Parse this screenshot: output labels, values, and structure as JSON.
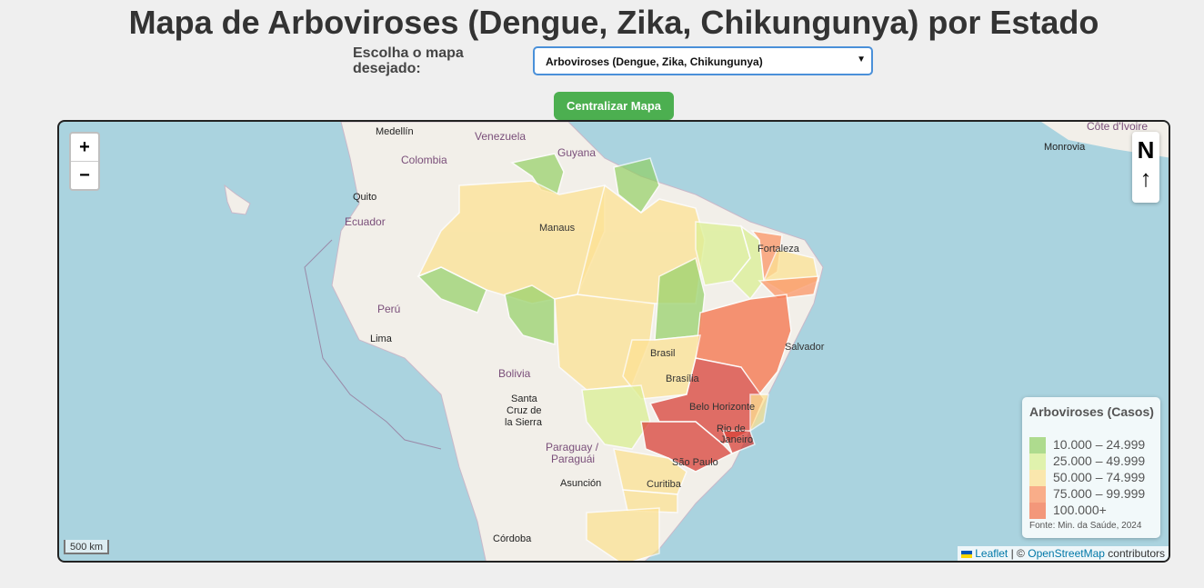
{
  "header": {
    "title": "Mapa de Arboviroses (Dengue, Zika, Chikungunya) por Estado"
  },
  "selector": {
    "label": "Escolha o mapa desejado:",
    "selected": "Arboviroses (Dengue, Zika, Chikungunya)"
  },
  "buttons": {
    "center": "Centralizar Mapa"
  },
  "map": {
    "zoom_in": "+",
    "zoom_out": "−",
    "north_label": "N",
    "north_arrow": "↑",
    "scale": "500 km",
    "attribution": {
      "leaflet": "Leaflet",
      "sep": "| ©",
      "osm": "OpenStreetMap",
      "suffix": "contributors"
    },
    "places": {
      "medellin": "Medellín",
      "venezuela": "Venezuela",
      "colombia": "Colombia",
      "guyana": "Guyana",
      "quito": "Quito",
      "ecuador": "Ecuador",
      "peru": "Perú",
      "lima": "Lima",
      "bolivia": "Bolivia",
      "santa1": "Santa",
      "santa2": "Cruz de",
      "santa3": "la Sierra",
      "paraguay1": "Paraguay /",
      "paraguay2": "Paraguái",
      "asuncion": "Asunción",
      "cordoba": "Córdoba",
      "manaus": "Manaus",
      "fortaleza": "Fortaleza",
      "salvador": "Salvador",
      "brasil": "Brasil",
      "brasilia": "Brasília",
      "bh": "Belo Horizonte",
      "rio1": "Rio de",
      "rio2": "Janeiro",
      "sp": "São Paulo",
      "curitiba": "Curitiba",
      "monrovia": "Monrovia",
      "cotedivoire": "Côte d'Ivoire"
    }
  },
  "legend": {
    "title": "Arboviroses (Casos)",
    "items": [
      {
        "label": "10.000 – 24.999",
        "color": "#91cf60"
      },
      {
        "label": "25.000 – 49.999",
        "color": "#d9ef8b"
      },
      {
        "label": "50.000 – 74.999",
        "color": "#fee08b"
      },
      {
        "label": "75.000 – 99.999",
        "color": "#fc8d59"
      },
      {
        "label": "100.000+",
        "color": "#f46d43"
      }
    ],
    "source": "Fonte: Min. da Saúde, 2024"
  }
}
